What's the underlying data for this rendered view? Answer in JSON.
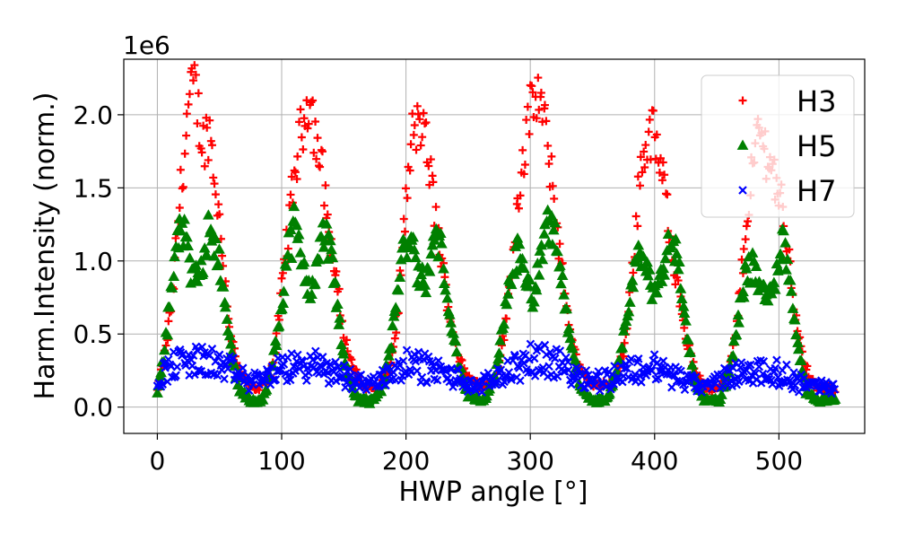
{
  "chart_data": {
    "type": "scatter",
    "title": "",
    "xlabel": "HWP angle [°]",
    "ylabel": "Harm.Intensity (norm.)",
    "y_offset_label": "1e6",
    "xlim": [
      -27,
      569
    ],
    "ylim": [
      -0.18,
      2.38
    ],
    "xticks": [
      0,
      100,
      200,
      300,
      400,
      500
    ],
    "xtick_labels": [
      "0",
      "100",
      "200",
      "300",
      "400",
      "500"
    ],
    "yticks": [
      0.0,
      0.5,
      1.0,
      1.5,
      2.0
    ],
    "ytick_labels": [
      "0.0",
      "0.5",
      "1.0",
      "1.5",
      "2.0"
    ],
    "grid": true,
    "legend_position": "top-right",
    "x_step": 1,
    "x_start": 0,
    "x_end": 545,
    "series": [
      {
        "name": "H3",
        "marker": "plus",
        "color": "#ff0000",
        "envelope": [
          [
            0,
            0.12
          ],
          [
            6,
            0.35
          ],
          [
            12,
            0.75
          ],
          [
            18,
            1.4
          ],
          [
            25,
            2.05
          ],
          [
            30,
            2.2
          ],
          [
            36,
            1.8
          ],
          [
            42,
            1.9
          ],
          [
            47,
            1.5
          ],
          [
            53,
            1.0
          ],
          [
            58,
            0.55
          ],
          [
            64,
            0.3
          ],
          [
            70,
            0.18
          ],
          [
            80,
            0.12
          ],
          [
            90,
            0.2
          ],
          [
            95,
            0.4
          ],
          [
            100,
            0.8
          ],
          [
            106,
            1.3
          ],
          [
            112,
            1.7
          ],
          [
            118,
            2.0
          ],
          [
            123,
            2.15
          ],
          [
            128,
            1.8
          ],
          [
            133,
            1.6
          ],
          [
            138,
            1.2
          ],
          [
            144,
            0.85
          ],
          [
            150,
            0.5
          ],
          [
            156,
            0.3
          ],
          [
            165,
            0.15
          ],
          [
            178,
            0.12
          ],
          [
            188,
            0.3
          ],
          [
            193,
            0.6
          ],
          [
            198,
            1.2
          ],
          [
            205,
            1.85
          ],
          [
            212,
            1.95
          ],
          [
            218,
            1.7
          ],
          [
            224,
            1.3
          ],
          [
            230,
            0.9
          ],
          [
            236,
            0.6
          ],
          [
            242,
            0.35
          ],
          [
            250,
            0.2
          ],
          [
            262,
            0.14
          ],
          [
            272,
            0.2
          ],
          [
            280,
            0.55
          ],
          [
            287,
            1.15
          ],
          [
            293,
            1.65
          ],
          [
            300,
            2.0
          ],
          [
            306,
            2.15
          ],
          [
            311,
            1.95
          ],
          [
            316,
            1.65
          ],
          [
            322,
            1.2
          ],
          [
            328,
            0.75
          ],
          [
            335,
            0.4
          ],
          [
            342,
            0.22
          ],
          [
            352,
            0.15
          ],
          [
            365,
            0.15
          ],
          [
            375,
            0.35
          ],
          [
            382,
            0.9
          ],
          [
            388,
            1.6
          ],
          [
            393,
            1.8
          ],
          [
            398,
            1.9
          ],
          [
            403,
            1.7
          ],
          [
            408,
            1.5
          ],
          [
            414,
            1.1
          ],
          [
            420,
            0.75
          ],
          [
            426,
            0.45
          ],
          [
            432,
            0.25
          ],
          [
            440,
            0.13
          ],
          [
            450,
            0.12
          ],
          [
            460,
            0.25
          ],
          [
            466,
            0.55
          ],
          [
            472,
            1.1
          ],
          [
            478,
            1.6
          ],
          [
            484,
            1.9
          ],
          [
            490,
            1.75
          ],
          [
            496,
            1.6
          ],
          [
            502,
            1.4
          ],
          [
            508,
            1.0
          ],
          [
            514,
            0.6
          ],
          [
            520,
            0.3
          ],
          [
            530,
            0.13
          ],
          [
            545,
            0.12
          ]
        ],
        "scatter_fraction": 0.1
      },
      {
        "name": "H5",
        "marker": "triangle",
        "color": "#008000",
        "envelope": [
          [
            0,
            0.1
          ],
          [
            5,
            0.35
          ],
          [
            10,
            0.7
          ],
          [
            15,
            1.05
          ],
          [
            20,
            1.25
          ],
          [
            25,
            1.0
          ],
          [
            30,
            0.85
          ],
          [
            36,
            1.0
          ],
          [
            42,
            1.25
          ],
          [
            48,
            1.1
          ],
          [
            54,
            0.7
          ],
          [
            60,
            0.35
          ],
          [
            66,
            0.12
          ],
          [
            75,
            0.04
          ],
          [
            85,
            0.05
          ],
          [
            92,
            0.25
          ],
          [
            98,
            0.6
          ],
          [
            104,
            1.0
          ],
          [
            110,
            1.25
          ],
          [
            116,
            1.0
          ],
          [
            122,
            0.8
          ],
          [
            128,
            0.95
          ],
          [
            134,
            1.2
          ],
          [
            140,
            1.05
          ],
          [
            146,
            0.6
          ],
          [
            152,
            0.25
          ],
          [
            160,
            0.06
          ],
          [
            172,
            0.04
          ],
          [
            182,
            0.15
          ],
          [
            188,
            0.45
          ],
          [
            194,
            0.85
          ],
          [
            200,
            1.15
          ],
          [
            206,
            1.05
          ],
          [
            212,
            0.85
          ],
          [
            218,
            0.9
          ],
          [
            224,
            1.2
          ],
          [
            230,
            1.0
          ],
          [
            236,
            0.6
          ],
          [
            242,
            0.3
          ],
          [
            250,
            0.08
          ],
          [
            262,
            0.04
          ],
          [
            272,
            0.2
          ],
          [
            278,
            0.55
          ],
          [
            284,
            0.9
          ],
          [
            290,
            1.05
          ],
          [
            296,
            0.85
          ],
          [
            302,
            0.75
          ],
          [
            308,
            0.95
          ],
          [
            314,
            1.25
          ],
          [
            320,
            1.2
          ],
          [
            326,
            0.8
          ],
          [
            332,
            0.45
          ],
          [
            340,
            0.15
          ],
          [
            350,
            0.04
          ],
          [
            362,
            0.05
          ],
          [
            372,
            0.3
          ],
          [
            378,
            0.65
          ],
          [
            384,
            0.95
          ],
          [
            390,
            1.05
          ],
          [
            396,
            0.85
          ],
          [
            402,
            0.8
          ],
          [
            408,
            1.0
          ],
          [
            414,
            1.2
          ],
          [
            420,
            0.9
          ],
          [
            426,
            0.5
          ],
          [
            432,
            0.2
          ],
          [
            440,
            0.05
          ],
          [
            452,
            0.04
          ],
          [
            462,
            0.3
          ],
          [
            468,
            0.65
          ],
          [
            474,
            0.95
          ],
          [
            480,
            0.95
          ],
          [
            486,
            0.8
          ],
          [
            492,
            0.75
          ],
          [
            498,
            0.95
          ],
          [
            504,
            1.15
          ],
          [
            510,
            0.8
          ],
          [
            516,
            0.4
          ],
          [
            522,
            0.1
          ],
          [
            532,
            0.04
          ],
          [
            545,
            0.06
          ]
        ],
        "scatter_fraction": 0.12
      },
      {
        "name": "H7",
        "marker": "x",
        "color": "#0000ff",
        "envelope": [
          [
            0,
            0.18
          ],
          [
            10,
            0.28
          ],
          [
            25,
            0.32
          ],
          [
            45,
            0.3
          ],
          [
            60,
            0.25
          ],
          [
            75,
            0.17
          ],
          [
            90,
            0.22
          ],
          [
            110,
            0.28
          ],
          [
            130,
            0.28
          ],
          [
            150,
            0.22
          ],
          [
            170,
            0.15
          ],
          [
            185,
            0.22
          ],
          [
            200,
            0.3
          ],
          [
            220,
            0.26
          ],
          [
            240,
            0.2
          ],
          [
            258,
            0.13
          ],
          [
            275,
            0.22
          ],
          [
            295,
            0.3
          ],
          [
            310,
            0.33
          ],
          [
            330,
            0.26
          ],
          [
            350,
            0.18
          ],
          [
            365,
            0.2
          ],
          [
            380,
            0.25
          ],
          [
            400,
            0.27
          ],
          [
            420,
            0.2
          ],
          [
            440,
            0.13
          ],
          [
            455,
            0.2
          ],
          [
            475,
            0.25
          ],
          [
            495,
            0.24
          ],
          [
            515,
            0.18
          ],
          [
            530,
            0.14
          ],
          [
            545,
            0.12
          ]
        ],
        "scatter_fraction": 0.35
      }
    ]
  }
}
